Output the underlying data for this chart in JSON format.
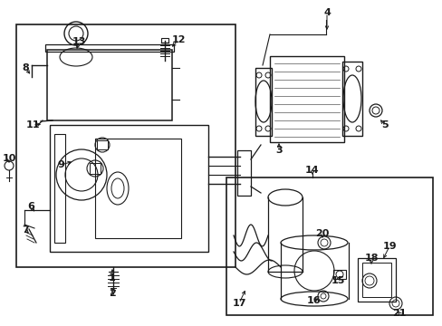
{
  "bg_color": "#ffffff",
  "line_color": "#1a1a1a",
  "fig_width": 4.89,
  "fig_height": 3.6,
  "dpi": 100,
  "xmax": 489,
  "ymax": 360
}
